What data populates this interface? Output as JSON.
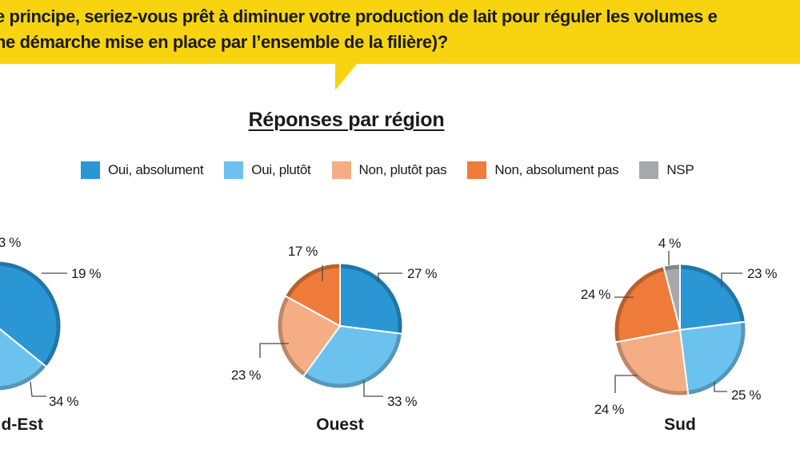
{
  "header": {
    "question_line1": "e principe, seriez-vous prêt à diminuer votre production de lait pour réguler les volumes e",
    "question_line2": "ne démarche mise en place par l’ensemble de la filière)?",
    "accent_color": "#f7d40f"
  },
  "legend": [
    {
      "label": "Oui, absolument",
      "color": "#2a97d4"
    },
    {
      "label": "Oui, plutôt",
      "color": "#6cc2ee"
    },
    {
      "label": "Non, plutôt pas",
      "color": "#f4ad85"
    },
    {
      "label": "Non, absolument pas",
      "color": "#ee7b3a"
    },
    {
      "label": "NSP",
      "color": "#a7a9ac"
    }
  ],
  "chart_data": [
    {
      "type": "pie",
      "title": "Réponses par région",
      "region": "d-Est",
      "slices": [
        {
          "category": "Oui, absolument",
          "value": 19,
          "label": "19 %"
        },
        {
          "category": "Oui, plutôt",
          "value": 34,
          "label": "34 %"
        },
        {
          "category": "Non, plutôt pas",
          "value": null,
          "label": ""
        },
        {
          "category": "Non, absolument pas",
          "value": null,
          "label": ""
        },
        {
          "category": "NSP",
          "value": null,
          "label": "3 %"
        }
      ]
    },
    {
      "type": "pie",
      "title": "Réponses par région",
      "region": "Ouest",
      "slices": [
        {
          "category": "Oui, absolument",
          "value": 27,
          "label": "27 %"
        },
        {
          "category": "Oui, plutôt",
          "value": 33,
          "label": "33 %"
        },
        {
          "category": "Non, plutôt pas",
          "value": 23,
          "label": "23 %"
        },
        {
          "category": "Non, absolument pas",
          "value": 17,
          "label": "17 %"
        }
      ]
    },
    {
      "type": "pie",
      "title": "Réponses par région",
      "region": "Sud",
      "slices": [
        {
          "category": "Oui, absolument",
          "value": 23,
          "label": "23 %"
        },
        {
          "category": "Oui, plutôt",
          "value": 25,
          "label": "25 %"
        },
        {
          "category": "Non, plutôt pas",
          "value": 24,
          "label": "24 %"
        },
        {
          "category": "Non, absolument pas",
          "value": 24,
          "label": "24 %"
        },
        {
          "category": "NSP",
          "value": 4,
          "label": "4 %"
        }
      ]
    }
  ]
}
